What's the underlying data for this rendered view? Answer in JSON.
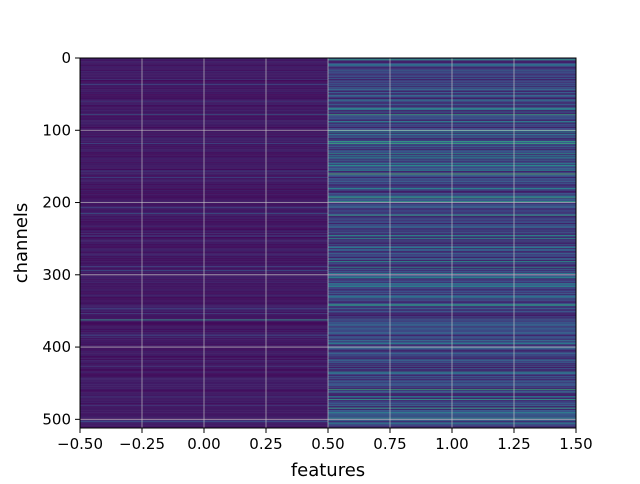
{
  "chart_data": {
    "type": "heatmap",
    "title": "",
    "xlabel": "features",
    "ylabel": "channels",
    "xlim": [
      -0.5,
      1.5
    ],
    "ylim": [
      512,
      0
    ],
    "grid": true,
    "colormap": "viridis",
    "columns": [
      0,
      1
    ],
    "rows": 512,
    "xticks": [
      "−0.50",
      "−0.25",
      "0.00",
      "0.25",
      "0.50",
      "0.75",
      "1.00",
      "1.25",
      "1.50"
    ],
    "yticks": [
      "0",
      "100",
      "200",
      "300",
      "400",
      "500"
    ],
    "xtick_values": [
      -0.5,
      -0.25,
      0,
      0.25,
      0.5,
      0.75,
      1.0,
      1.25,
      1.5
    ],
    "ytick_values": [
      0,
      100,
      200,
      300,
      400,
      500
    ],
    "column_summary": [
      {
        "feature": 0,
        "baseline": 0.08,
        "highlights": [
          {
            "channel": 362,
            "value": 0.55
          },
          {
            "channel": 215,
            "value": 0.3
          },
          {
            "channel": 78,
            "value": 0.3
          }
        ]
      },
      {
        "feature": 1,
        "baseline": 0.22,
        "highlights": [
          {
            "channel": 78,
            "value": 0.6
          },
          {
            "channel": 88,
            "value": 0.5
          },
          {
            "channel": 118,
            "value": 0.6
          },
          {
            "channel": 160,
            "value": 0.7
          },
          {
            "channel": 193,
            "value": 0.6
          },
          {
            "channel": 198,
            "value": 0.55
          },
          {
            "channel": 262,
            "value": 0.45
          },
          {
            "channel": 298,
            "value": 0.45
          },
          {
            "channel": 312,
            "value": 0.45
          },
          {
            "channel": 458,
            "value": 0.6
          },
          {
            "channel": 490,
            "value": 0.45
          }
        ]
      }
    ],
    "colors": {
      "low": "#440154",
      "mid": "#31688e",
      "high": "#5ec962",
      "grid": "#c8c8c8"
    }
  }
}
